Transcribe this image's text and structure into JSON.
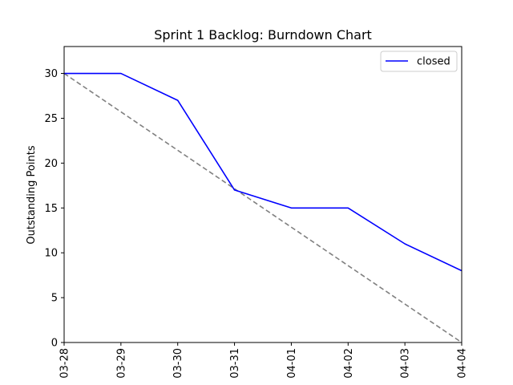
{
  "chart_data": {
    "type": "line",
    "title": "Sprint 1 Backlog: Burndown Chart",
    "xlabel": "",
    "ylabel": "Outstanding Points",
    "categories": [
      "03-28",
      "03-29",
      "03-30",
      "03-31",
      "04-01",
      "04-02",
      "04-03",
      "04-04"
    ],
    "ylim": [
      0,
      33
    ],
    "yticks": [
      0,
      5,
      10,
      15,
      20,
      25,
      30
    ],
    "grid": false,
    "legend_position": "top-right",
    "series": [
      {
        "name": "closed",
        "values": [
          30,
          30,
          27,
          17,
          15,
          15,
          11,
          8
        ],
        "color": "#0000ff",
        "style": "solid"
      },
      {
        "values": [
          30,
          25.714,
          21.429,
          17.143,
          12.857,
          8.571,
          4.286,
          0
        ],
        "color": "#808080",
        "style": "dashed"
      }
    ]
  }
}
